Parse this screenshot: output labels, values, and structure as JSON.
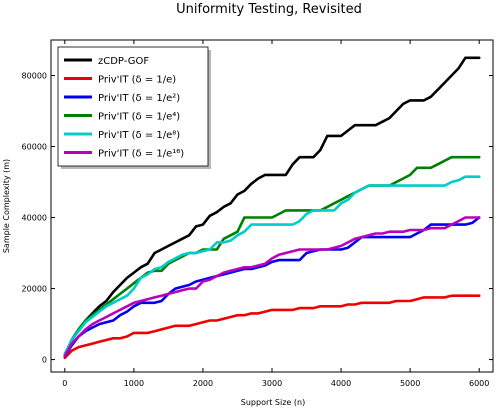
{
  "chart_data": {
    "type": "line",
    "title": "Uniformity Testing, Revisited",
    "xlabel": "Support Size (n)",
    "ylabel": "Sample Complexity (m)",
    "xlim": [
      -200,
      6200
    ],
    "ylim": [
      -3500,
      90000
    ],
    "x_ticks": [
      0,
      1000,
      2000,
      3000,
      4000,
      5000,
      6000
    ],
    "y_ticks": [
      0,
      20000,
      40000,
      60000,
      80000
    ],
    "grid": false,
    "legend_position": "top-left",
    "series": [
      {
        "name": "zCDP-GOF",
        "color": "#000000",
        "x": [
          0,
          100,
          200,
          300,
          400,
          500,
          600,
          700,
          800,
          900,
          1000,
          1100,
          1200,
          1300,
          1400,
          1500,
          1600,
          1700,
          1800,
          1900,
          2000,
          2100,
          2200,
          2300,
          2400,
          2500,
          2600,
          2700,
          2800,
          2900,
          3000,
          3100,
          3200,
          3300,
          3400,
          3500,
          3600,
          3700,
          3800,
          3900,
          4000,
          4100,
          4200,
          4300,
          4400,
          4500,
          4600,
          4700,
          4800,
          4900,
          5000,
          5100,
          5200,
          5300,
          5400,
          5500,
          5600,
          5700,
          5800,
          5900,
          6000
        ],
        "y": [
          1000,
          5500,
          8500,
          11000,
          13000,
          15000,
          16500,
          19000,
          21000,
          23000,
          24500,
          26000,
          27000,
          30000,
          31000,
          32000,
          33000,
          34000,
          35000,
          37500,
          38000,
          40500,
          41500,
          43000,
          44000,
          46500,
          47500,
          49500,
          51000,
          52000,
          52000,
          52000,
          52000,
          55000,
          57000,
          57000,
          57000,
          59000,
          63000,
          63000,
          63000,
          64500,
          66000,
          66000,
          66000,
          66000,
          67000,
          68000,
          70000,
          72000,
          73000,
          73000,
          73000,
          74000,
          76000,
          78000,
          80000,
          82000,
          85000,
          85000,
          85000
        ]
      },
      {
        "name": "Priv'IT (δ = 1/e)",
        "color": "#ee0000",
        "x": [
          0,
          100,
          200,
          300,
          400,
          500,
          600,
          700,
          800,
          900,
          1000,
          1100,
          1200,
          1300,
          1400,
          1500,
          1600,
          1700,
          1800,
          1900,
          2000,
          2100,
          2200,
          2300,
          2400,
          2500,
          2600,
          2700,
          2800,
          2900,
          3000,
          3100,
          3200,
          3300,
          3400,
          3500,
          3600,
          3700,
          3800,
          3900,
          4000,
          4100,
          4200,
          4300,
          4400,
          4500,
          4600,
          4700,
          4800,
          4900,
          5000,
          5100,
          5200,
          5300,
          5400,
          5500,
          5600,
          5700,
          5800,
          5900,
          6000
        ],
        "y": [
          500,
          2500,
          3500,
          4000,
          4500,
          5000,
          5500,
          6000,
          6000,
          6500,
          7500,
          7500,
          7500,
          8000,
          8500,
          9000,
          9500,
          9500,
          9500,
          10000,
          10500,
          11000,
          11000,
          11500,
          12000,
          12500,
          12500,
          13000,
          13000,
          13500,
          14000,
          14000,
          14000,
          14000,
          14500,
          14500,
          14500,
          15000,
          15000,
          15000,
          15000,
          15500,
          15500,
          16000,
          16000,
          16000,
          16000,
          16000,
          16500,
          16500,
          16500,
          17000,
          17500,
          17500,
          17500,
          17500,
          18000,
          18000,
          18000,
          18000,
          18000
        ]
      },
      {
        "name": "Priv'IT (δ = 1/e²)",
        "color": "#0000ee",
        "x": [
          0,
          100,
          200,
          300,
          400,
          500,
          600,
          700,
          800,
          900,
          1000,
          1100,
          1200,
          1300,
          1400,
          1500,
          1600,
          1700,
          1800,
          1900,
          2000,
          2100,
          2200,
          2300,
          2400,
          2500,
          2600,
          2700,
          2800,
          2900,
          3000,
          3100,
          3200,
          3300,
          3400,
          3500,
          3600,
          3700,
          3800,
          3900,
          4000,
          4100,
          4200,
          4300,
          4400,
          4500,
          4600,
          4700,
          4800,
          4900,
          5000,
          5100,
          5200,
          5300,
          5400,
          5500,
          5600,
          5700,
          5800,
          5900,
          6000
        ],
        "y": [
          1000,
          4000,
          6500,
          8000,
          9000,
          10000,
          10500,
          11000,
          12500,
          13500,
          15000,
          16000,
          16000,
          16000,
          16500,
          18500,
          20000,
          20500,
          21000,
          22000,
          22500,
          23000,
          23500,
          24000,
          24500,
          25000,
          25500,
          25500,
          26000,
          26500,
          27500,
          28000,
          28000,
          28000,
          28000,
          30000,
          30500,
          31000,
          31000,
          31000,
          31000,
          31500,
          33000,
          34500,
          34500,
          34500,
          34500,
          34500,
          34500,
          34500,
          34500,
          35500,
          36500,
          38000,
          38000,
          38000,
          38000,
          38000,
          38000,
          38500,
          40000
        ]
      },
      {
        "name": "Priv'IT (δ = 1/e⁴)",
        "color": "#008000",
        "x": [
          0,
          100,
          200,
          300,
          400,
          500,
          600,
          700,
          800,
          900,
          1000,
          1100,
          1200,
          1300,
          1400,
          1500,
          1600,
          1700,
          1800,
          1900,
          2000,
          2100,
          2200,
          2300,
          2400,
          2500,
          2600,
          2700,
          2800,
          2900,
          3000,
          3100,
          3200,
          3300,
          3400,
          3500,
          3600,
          3700,
          3800,
          3900,
          4000,
          4100,
          4200,
          4300,
          4400,
          4500,
          4600,
          4700,
          4800,
          4900,
          5000,
          5100,
          5200,
          5300,
          5400,
          5500,
          5600,
          5700,
          5800,
          5900,
          6000
        ],
        "y": [
          1500,
          5500,
          8500,
          11000,
          12500,
          14000,
          15500,
          17000,
          18500,
          20000,
          21500,
          23000,
          24500,
          25000,
          25000,
          27000,
          28000,
          29000,
          30000,
          30000,
          31000,
          31000,
          31000,
          34000,
          35000,
          36000,
          40000,
          40000,
          40000,
          40000,
          40000,
          41000,
          42000,
          42000,
          42000,
          42000,
          42000,
          42000,
          43000,
          44000,
          45000,
          46000,
          47000,
          48000,
          49000,
          49000,
          49000,
          49000,
          50000,
          51000,
          52000,
          54000,
          54000,
          54000,
          55000,
          56000,
          57000,
          57000,
          57000,
          57000,
          57000
        ]
      },
      {
        "name": "Priv'IT (δ = 1/e⁸)",
        "color": "#00cccc",
        "x": [
          0,
          100,
          200,
          300,
          400,
          500,
          600,
          700,
          800,
          900,
          1000,
          1100,
          1200,
          1300,
          1400,
          1500,
          1600,
          1700,
          1800,
          1900,
          2000,
          2100,
          2200,
          2300,
          2400,
          2500,
          2600,
          2700,
          2800,
          2900,
          3000,
          3100,
          3200,
          3300,
          3400,
          3500,
          3600,
          3700,
          3800,
          3900,
          4000,
          4100,
          4200,
          4300,
          4400,
          4500,
          4600,
          4700,
          4800,
          4900,
          5000,
          5100,
          5200,
          5300,
          5400,
          5500,
          5600,
          5700,
          5800,
          5900,
          6000
        ],
        "y": [
          1500,
          5500,
          8000,
          10500,
          12000,
          13500,
          15000,
          16000,
          17000,
          18000,
          20000,
          23000,
          24000,
          25500,
          26000,
          27500,
          28500,
          29500,
          30000,
          30000,
          30500,
          31000,
          33000,
          33000,
          33500,
          35000,
          36000,
          38000,
          38000,
          38000,
          38000,
          38000,
          38000,
          38000,
          39000,
          41000,
          42000,
          42000,
          42000,
          42000,
          44000,
          45000,
          47000,
          48000,
          49000,
          49000,
          49000,
          49000,
          49000,
          49000,
          49000,
          49000,
          49000,
          49000,
          49000,
          49000,
          50000,
          50500,
          51500,
          51500,
          51500
        ]
      },
      {
        "name": "Priv'IT (δ = 1/e¹⁶)",
        "color": "#bb00bb",
        "x": [
          0,
          100,
          200,
          300,
          400,
          500,
          600,
          700,
          800,
          900,
          1000,
          1100,
          1200,
          1300,
          1400,
          1500,
          1600,
          1700,
          1800,
          1900,
          2000,
          2100,
          2200,
          2300,
          2400,
          2500,
          2600,
          2700,
          2800,
          2900,
          3000,
          3100,
          3200,
          3300,
          3400,
          3500,
          3600,
          3700,
          3800,
          3900,
          4000,
          4100,
          4200,
          4300,
          4400,
          4500,
          4600,
          4700,
          4800,
          4900,
          5000,
          5100,
          5200,
          5300,
          5400,
          5500,
          5600,
          5700,
          5800,
          5900,
          6000
        ],
        "y": [
          1000,
          4500,
          6500,
          8500,
          10000,
          11000,
          12000,
          13000,
          14000,
          15000,
          16000,
          16500,
          17000,
          17500,
          18000,
          18500,
          19000,
          19500,
          20000,
          20000,
          22000,
          22500,
          23500,
          24500,
          25000,
          25500,
          26000,
          26000,
          26500,
          27000,
          28500,
          29500,
          30000,
          30500,
          31000,
          31000,
          31000,
          31000,
          31000,
          31500,
          32000,
          33000,
          34000,
          34500,
          35000,
          35500,
          35500,
          36000,
          36000,
          36000,
          36500,
          36500,
          36500,
          37000,
          37000,
          37000,
          38000,
          39000,
          40000,
          40000,
          40000
        ]
      }
    ]
  }
}
